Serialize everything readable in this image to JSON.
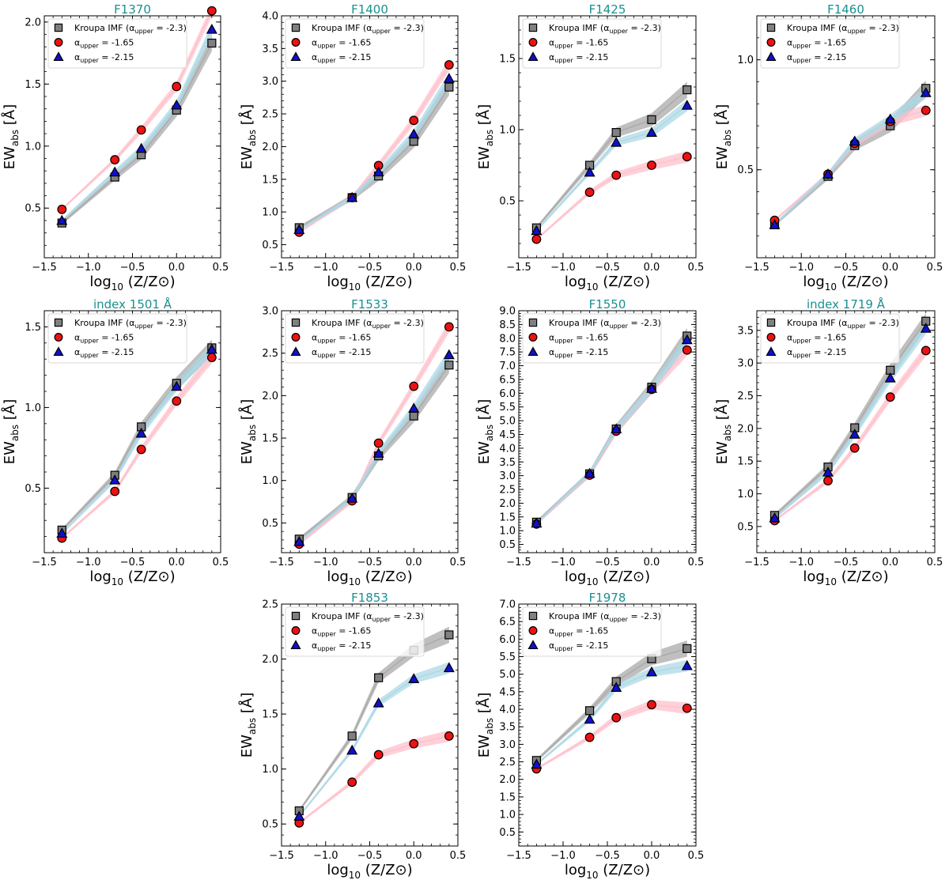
{
  "figure": {
    "xlabel": "log10 (Z/Z⊙)",
    "ylabel": "EWabs [Å]",
    "colors": {
      "kroupa_marker": "#808080",
      "kroupa_band": "#a9a9a9",
      "a165_marker": "#ee1111",
      "a165_band": "#ffc0cb",
      "a215_marker": "#1010cc",
      "a215_band": "#add8e6",
      "title": "#1a9090"
    },
    "legend": [
      {
        "label": "Kroupa IMF (αupper = -2.3)",
        "marker": "square"
      },
      {
        "label": "αupper = -1.65",
        "marker": "circle"
      },
      {
        "label": "αupper = -2.15",
        "marker": "triangle"
      }
    ]
  },
  "chart_data": [
    {
      "type": "scatter",
      "title": "F1370",
      "x": [
        -1.3,
        -0.7,
        -0.4,
        0.0,
        0.4
      ],
      "xlim": [
        -1.5,
        0.5
      ],
      "xticks": [
        -1.5,
        -1.0,
        -0.5,
        0.0,
        0.5
      ],
      "ylim": [
        0.1,
        2.05
      ],
      "yticks": [
        0.5,
        1.0,
        1.5,
        2.0
      ],
      "series": [
        {
          "name": "Kroupa IMF (αupper = -2.3)",
          "values": [
            0.38,
            0.75,
            0.93,
            1.29,
            1.83
          ]
        },
        {
          "name": "αupper = -1.65",
          "values": [
            0.49,
            0.89,
            1.13,
            1.48,
            2.09
          ]
        },
        {
          "name": "αupper = -2.15",
          "values": [
            0.4,
            0.79,
            0.98,
            1.33,
            1.94
          ]
        }
      ]
    },
    {
      "type": "scatter",
      "title": "F1400",
      "x": [
        -1.3,
        -0.7,
        -0.4,
        0.0,
        0.4
      ],
      "xlim": [
        -1.5,
        0.5
      ],
      "xticks": [
        -1.5,
        -1.0,
        -0.5,
        0.0,
        0.5
      ],
      "ylim": [
        0.3,
        4.0
      ],
      "yticks": [
        0.5,
        1.0,
        1.5,
        2.0,
        2.5,
        3.0,
        3.5,
        4.0
      ],
      "series": [
        {
          "name": "Kroupa IMF (αupper = -2.3)",
          "values": [
            0.76,
            1.22,
            1.55,
            2.08,
            2.91
          ]
        },
        {
          "name": "αupper = -1.65",
          "values": [
            0.69,
            1.22,
            1.71,
            2.4,
            3.25
          ]
        },
        {
          "name": "αupper = -2.15",
          "values": [
            0.73,
            1.22,
            1.61,
            2.19,
            3.04
          ]
        }
      ]
    },
    {
      "type": "scatter",
      "title": "F1425",
      "x": [
        -1.3,
        -0.7,
        -0.4,
        0.0,
        0.4
      ],
      "xlim": [
        -1.5,
        0.5
      ],
      "xticks": [
        -1.5,
        -1.0,
        -0.5,
        0.0,
        0.5
      ],
      "ylim": [
        0.1,
        1.8
      ],
      "yticks": [
        0.5,
        1.0,
        1.5
      ],
      "series": [
        {
          "name": "Kroupa IMF (αupper = -2.3)",
          "values": [
            0.31,
            0.75,
            0.98,
            1.07,
            1.28
          ]
        },
        {
          "name": "αupper = -1.65",
          "values": [
            0.23,
            0.56,
            0.68,
            0.75,
            0.81
          ]
        },
        {
          "name": "αupper = -2.15",
          "values": [
            0.29,
            0.7,
            0.91,
            0.98,
            1.17
          ]
        }
      ]
    },
    {
      "type": "scatter",
      "title": "F1460",
      "x": [
        -1.3,
        -0.7,
        -0.4,
        0.0,
        0.4
      ],
      "xlim": [
        -1.5,
        0.5
      ],
      "xticks": [
        -1.5,
        -1.0,
        -0.5,
        0.0,
        0.5
      ],
      "ylim": [
        0.1,
        1.2
      ],
      "yticks": [
        0.5,
        1.0
      ],
      "series": [
        {
          "name": "Kroupa IMF (αupper = -2.3)",
          "values": [
            0.25,
            0.47,
            0.61,
            0.7,
            0.87
          ]
        },
        {
          "name": "αupper = -1.65",
          "values": [
            0.27,
            0.48,
            0.62,
            0.72,
            0.77
          ]
        },
        {
          "name": "αupper = -2.15",
          "values": [
            0.25,
            0.48,
            0.63,
            0.73,
            0.85
          ]
        }
      ]
    },
    {
      "type": "scatter",
      "title": "index 1501 Å",
      "x": [
        -1.3,
        -0.7,
        -0.4,
        0.0,
        0.4
      ],
      "xlim": [
        -1.5,
        0.5
      ],
      "xticks": [
        -1.5,
        -1.0,
        -0.5,
        0.0,
        0.5
      ],
      "ylim": [
        0.1,
        1.6
      ],
      "yticks": [
        0.5,
        1.0,
        1.5
      ],
      "series": [
        {
          "name": "Kroupa IMF (αupper = -2.3)",
          "values": [
            0.24,
            0.58,
            0.88,
            1.15,
            1.37
          ]
        },
        {
          "name": "αupper = -1.65",
          "values": [
            0.19,
            0.48,
            0.74,
            1.04,
            1.31
          ]
        },
        {
          "name": "αupper = -2.15",
          "values": [
            0.22,
            0.55,
            0.84,
            1.13,
            1.36
          ]
        }
      ]
    },
    {
      "type": "scatter",
      "title": "F1533",
      "x": [
        -1.3,
        -0.7,
        -0.4,
        0.0,
        0.4
      ],
      "xlim": [
        -1.5,
        0.5
      ],
      "xticks": [
        -1.5,
        -1.0,
        -0.5,
        0.0,
        0.5
      ],
      "ylim": [
        0.15,
        3.0
      ],
      "yticks": [
        0.5,
        1.0,
        1.5,
        2.0,
        2.5,
        3.0
      ],
      "series": [
        {
          "name": "Kroupa IMF (αupper = -2.3)",
          "values": [
            0.31,
            0.8,
            1.29,
            1.76,
            2.36
          ]
        },
        {
          "name": "αupper = -1.65",
          "values": [
            0.25,
            0.76,
            1.44,
            2.11,
            2.81
          ]
        },
        {
          "name": "αupper = -2.15",
          "values": [
            0.28,
            0.79,
            1.32,
            1.85,
            2.48
          ]
        }
      ]
    },
    {
      "type": "scatter",
      "title": "F1550",
      "x": [
        -1.3,
        -0.7,
        -0.4,
        0.0,
        0.4
      ],
      "xlim": [
        -1.5,
        0.5
      ],
      "xticks": [
        -1.5,
        -1.0,
        -0.5,
        0.0,
        0.5
      ],
      "ylim": [
        0.2,
        9.0
      ],
      "yticks": [
        0.5,
        1.0,
        1.5,
        2.0,
        2.5,
        3.0,
        3.5,
        4.0,
        4.5,
        5.0,
        5.5,
        6.0,
        6.5,
        7.0,
        7.5,
        8.0,
        8.5,
        9.0
      ],
      "series": [
        {
          "name": "Kroupa IMF (αupper = -2.3)",
          "values": [
            1.31,
            3.07,
            4.7,
            6.22,
            8.08
          ]
        },
        {
          "name": "αupper = -1.65",
          "values": [
            1.24,
            3.02,
            4.62,
            6.14,
            7.57
          ]
        },
        {
          "name": "αupper = -2.15",
          "values": [
            1.27,
            3.08,
            4.7,
            6.17,
            7.94
          ]
        }
      ]
    },
    {
      "type": "scatter",
      "title": "index 1719 Å",
      "x": [
        -1.3,
        -0.7,
        -0.4,
        0.0,
        0.4
      ],
      "xlim": [
        -1.5,
        0.5
      ],
      "xticks": [
        -1.5,
        -1.0,
        -0.5,
        0.0,
        0.5
      ],
      "ylim": [
        0.1,
        3.8
      ],
      "yticks": [
        0.5,
        1.0,
        1.5,
        2.0,
        2.5,
        3.0,
        3.5
      ],
      "series": [
        {
          "name": "Kroupa IMF (αupper = -2.3)",
          "values": [
            0.67,
            1.41,
            2.01,
            2.89,
            3.64
          ]
        },
        {
          "name": "αupper = -1.65",
          "values": [
            0.59,
            1.2,
            1.7,
            2.48,
            3.19
          ]
        },
        {
          "name": "αupper = -2.15",
          "values": [
            0.63,
            1.33,
            1.91,
            2.77,
            3.53
          ]
        }
      ]
    },
    {
      "type": "scatter",
      "title": "F1853",
      "x": [
        -1.3,
        -0.7,
        -0.4,
        0.0,
        0.4
      ],
      "xlim": [
        -1.5,
        0.5
      ],
      "xticks": [
        -1.5,
        -1.0,
        -0.5,
        0.0,
        0.5
      ],
      "ylim": [
        0.3,
        2.5
      ],
      "yticks": [
        0.5,
        1.0,
        1.5,
        2.0,
        2.5
      ],
      "series": [
        {
          "name": "Kroupa IMF (αupper = -2.3)",
          "values": [
            0.62,
            1.3,
            1.83,
            2.08,
            2.22
          ]
        },
        {
          "name": "αupper = -1.65",
          "values": [
            0.51,
            0.88,
            1.13,
            1.23,
            1.3
          ]
        },
        {
          "name": "αupper = -2.15",
          "values": [
            0.57,
            1.17,
            1.6,
            1.82,
            1.92
          ]
        }
      ]
    },
    {
      "type": "scatter",
      "title": "F1978",
      "x": [
        -1.3,
        -0.7,
        -0.4,
        0.0,
        0.4
      ],
      "xlim": [
        -1.5,
        0.5
      ],
      "xticks": [
        -1.5,
        -1.0,
        -0.5,
        0.0,
        0.5
      ],
      "ylim": [
        0.1,
        7.0
      ],
      "yticks": [
        0.5,
        1.0,
        1.5,
        2.0,
        2.5,
        3.0,
        3.5,
        4.0,
        4.5,
        5.0,
        5.5,
        6.0,
        6.5,
        7.0
      ],
      "series": [
        {
          "name": "Kroupa IMF (αupper = -2.3)",
          "values": [
            2.54,
            3.96,
            4.79,
            5.44,
            5.73
          ]
        },
        {
          "name": "αupper = -1.65",
          "values": [
            2.3,
            3.2,
            3.76,
            4.13,
            4.03
          ]
        },
        {
          "name": "αupper = -2.15",
          "values": [
            2.43,
            3.71,
            4.62,
            5.06,
            5.24
          ]
        }
      ]
    }
  ]
}
